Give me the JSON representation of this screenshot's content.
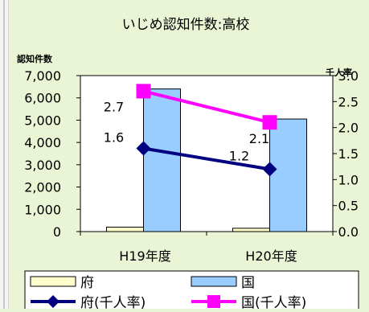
{
  "chart_data": {
    "type": "bar",
    "title": "いじめ認知件数:高校",
    "y_left_label": "認知件数",
    "y_right_label": "千人率",
    "categories": [
      "H19年度",
      "H20年度"
    ],
    "y_left_ticks": [
      "7,000",
      "6,000",
      "5,000",
      "4,000",
      "3,000",
      "2,000",
      "1,000",
      "0"
    ],
    "y_right_ticks": [
      "3.0",
      "2.5",
      "2.0",
      "1.5",
      "1.0",
      "0.5",
      "0.0"
    ],
    "ylim_left": [
      0,
      7000
    ],
    "ylim_right": [
      0,
      3.0
    ],
    "legend_position": "bottom",
    "series": [
      {
        "name": "府",
        "kind": "bar",
        "axis": "left",
        "values": [
          200,
          150
        ],
        "color": "#ffffcc"
      },
      {
        "name": "国",
        "kind": "bar",
        "axis": "left",
        "values": [
          6400,
          5050
        ],
        "color": "#99ccff"
      },
      {
        "name": "府(千人率)",
        "kind": "line",
        "axis": "right",
        "values": [
          1.6,
          1.2
        ],
        "labels": [
          "1.6",
          "1.2"
        ],
        "color": "#000080"
      },
      {
        "name": "国(千人率)",
        "kind": "line",
        "axis": "right",
        "values": [
          2.7,
          2.1
        ],
        "labels": [
          "2.7",
          "2.1"
        ],
        "color": "#ff00ff"
      }
    ]
  }
}
